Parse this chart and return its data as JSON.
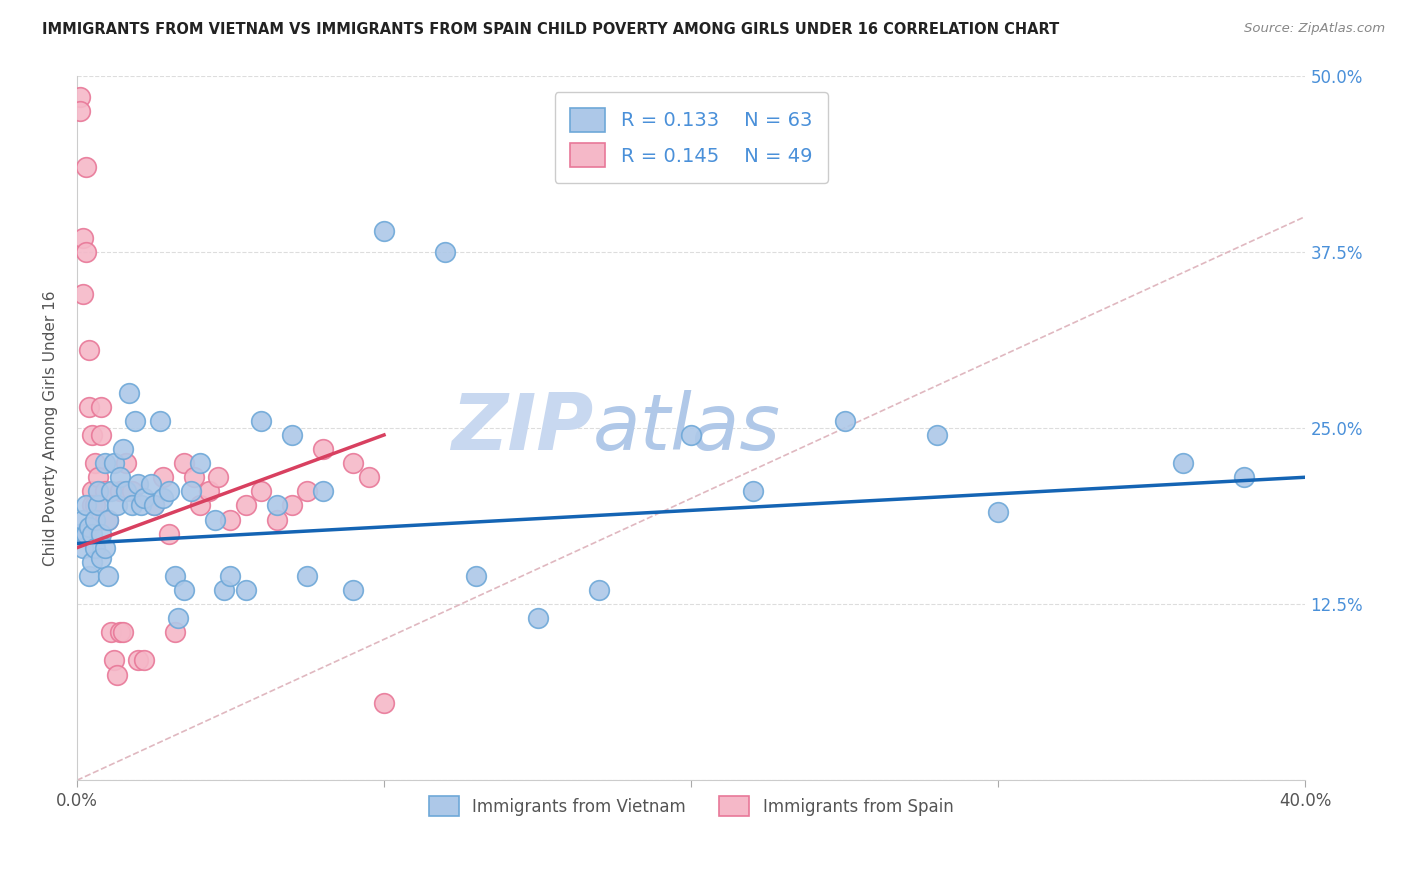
{
  "title": "IMMIGRANTS FROM VIETNAM VS IMMIGRANTS FROM SPAIN CHILD POVERTY AMONG GIRLS UNDER 16 CORRELATION CHART",
  "source": "Source: ZipAtlas.com",
  "ylabel": "Child Poverty Among Girls Under 16",
  "xlim": [
    0.0,
    0.4
  ],
  "ylim": [
    0.0,
    0.5
  ],
  "blue_R": 0.133,
  "blue_N": 63,
  "pink_R": 0.145,
  "pink_N": 49,
  "blue_label": "Immigrants from Vietnam",
  "pink_label": "Immigrants from Spain",
  "blue_color": "#adc8e8",
  "pink_color": "#f5b8c8",
  "blue_edge": "#6ea8d8",
  "pink_edge": "#e87898",
  "trend_blue": "#1464b4",
  "trend_pink": "#d84060",
  "diag_color": "#e0b8c0",
  "watermark_main": "#c8d8f0",
  "watermark_accent": "#b0c8e8",
  "background": "#ffffff",
  "blue_x": [
    0.001,
    0.002,
    0.002,
    0.003,
    0.003,
    0.004,
    0.004,
    0.005,
    0.005,
    0.006,
    0.006,
    0.007,
    0.007,
    0.008,
    0.008,
    0.009,
    0.009,
    0.01,
    0.01,
    0.011,
    0.012,
    0.013,
    0.014,
    0.015,
    0.016,
    0.017,
    0.018,
    0.019,
    0.02,
    0.021,
    0.022,
    0.024,
    0.025,
    0.027,
    0.028,
    0.03,
    0.032,
    0.033,
    0.035,
    0.037,
    0.04,
    0.045,
    0.048,
    0.05,
    0.055,
    0.06,
    0.065,
    0.07,
    0.075,
    0.08,
    0.09,
    0.1,
    0.12,
    0.13,
    0.15,
    0.17,
    0.2,
    0.22,
    0.25,
    0.28,
    0.3,
    0.36,
    0.38
  ],
  "blue_y": [
    0.175,
    0.165,
    0.185,
    0.195,
    0.175,
    0.18,
    0.145,
    0.155,
    0.175,
    0.185,
    0.165,
    0.195,
    0.205,
    0.158,
    0.175,
    0.165,
    0.225,
    0.185,
    0.145,
    0.205,
    0.225,
    0.195,
    0.215,
    0.235,
    0.205,
    0.275,
    0.195,
    0.255,
    0.21,
    0.195,
    0.2,
    0.21,
    0.195,
    0.255,
    0.2,
    0.205,
    0.145,
    0.115,
    0.135,
    0.205,
    0.225,
    0.185,
    0.135,
    0.145,
    0.135,
    0.255,
    0.195,
    0.245,
    0.145,
    0.205,
    0.135,
    0.39,
    0.375,
    0.145,
    0.115,
    0.135,
    0.245,
    0.205,
    0.255,
    0.245,
    0.19,
    0.225,
    0.215
  ],
  "pink_x": [
    0.001,
    0.001,
    0.002,
    0.002,
    0.003,
    0.003,
    0.004,
    0.004,
    0.005,
    0.005,
    0.005,
    0.006,
    0.006,
    0.007,
    0.007,
    0.008,
    0.008,
    0.009,
    0.009,
    0.01,
    0.011,
    0.012,
    0.013,
    0.014,
    0.014,
    0.015,
    0.016,
    0.018,
    0.02,
    0.022,
    0.025,
    0.028,
    0.03,
    0.032,
    0.035,
    0.038,
    0.04,
    0.043,
    0.046,
    0.05,
    0.055,
    0.06,
    0.065,
    0.07,
    0.075,
    0.08,
    0.09,
    0.095,
    0.1
  ],
  "pink_y": [
    0.485,
    0.475,
    0.385,
    0.345,
    0.435,
    0.375,
    0.305,
    0.265,
    0.205,
    0.245,
    0.195,
    0.225,
    0.195,
    0.215,
    0.185,
    0.265,
    0.245,
    0.205,
    0.185,
    0.185,
    0.105,
    0.085,
    0.075,
    0.205,
    0.105,
    0.105,
    0.225,
    0.205,
    0.085,
    0.085,
    0.195,
    0.215,
    0.175,
    0.105,
    0.225,
    0.215,
    0.195,
    0.205,
    0.215,
    0.185,
    0.195,
    0.205,
    0.185,
    0.195,
    0.205,
    0.235,
    0.225,
    0.215,
    0.055
  ],
  "blue_trend_x0": 0.0,
  "blue_trend_y0": 0.168,
  "blue_trend_x1": 0.4,
  "blue_trend_y1": 0.215,
  "pink_trend_x0": 0.0,
  "pink_trend_y0": 0.165,
  "pink_trend_x1": 0.1,
  "pink_trend_y1": 0.245
}
